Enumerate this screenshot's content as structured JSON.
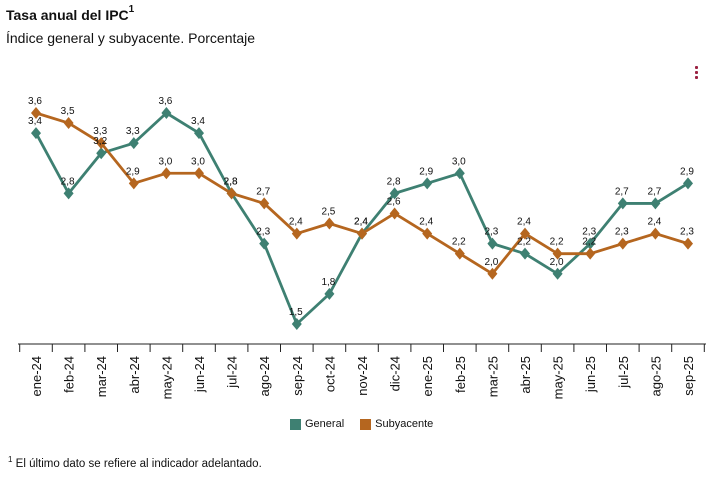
{
  "header": {
    "title": "Tasa anual del IPC",
    "title_sup": "1",
    "subtitle": "Índice general y subyacente. Porcentaje"
  },
  "footnote": {
    "sup": "1",
    "text": " El último dato se refiere al indicador adelantado."
  },
  "chart_data": {
    "type": "line",
    "categories": [
      "ene-24",
      "feb-24",
      "mar-24",
      "abr-24",
      "may-24",
      "jun-24",
      "jul-24",
      "ago-24",
      "sep-24",
      "oct-24",
      "nov-24",
      "dic-24",
      "ene-25",
      "feb-25",
      "mar-25",
      "abr-25",
      "may-25",
      "jun-25",
      "jul-25",
      "ago-25",
      "sep-25"
    ],
    "series": [
      {
        "name": "General",
        "color": "#3e8072",
        "values": [
          3.4,
          2.8,
          3.2,
          3.3,
          3.6,
          3.4,
          2.8,
          2.3,
          1.5,
          1.8,
          2.4,
          2.8,
          2.9,
          3.0,
          2.3,
          2.2,
          2.0,
          2.3,
          2.7,
          2.7,
          2.9
        ]
      },
      {
        "name": "Subyacente",
        "color": "#b5661f",
        "values": [
          3.6,
          3.5,
          3.3,
          2.9,
          3.0,
          3.0,
          2.8,
          2.7,
          2.4,
          2.5,
          2.4,
          2.6,
          2.4,
          2.2,
          2.0,
          2.4,
          2.2,
          2.2,
          2.3,
          2.4,
          2.3
        ]
      }
    ],
    "data_labels": {
      "General": [
        "3,4",
        "2,8",
        "3,2",
        "3,3",
        "3,6",
        "3,4",
        "2,8",
        "2,3",
        "1,5",
        "1,8",
        "2,4",
        "2,8",
        "2,9",
        "3,0",
        "2,3",
        "2,2",
        "2,0",
        "2,3",
        "2,7",
        "2,7",
        "2,9"
      ],
      "Subyacente": [
        "3,6",
        "3,5",
        "3,3",
        "2,9",
        "3,0",
        "3,0",
        "2,8",
        "2,7",
        "2,4",
        "2,5",
        "2,4",
        "2,6",
        "2,4",
        "2,2",
        "2,0",
        "2,4",
        "2,2",
        "2,2",
        "2,3",
        "2,4",
        "2,3"
      ]
    },
    "ylim": [
      1.3,
      3.8
    ],
    "grid": false,
    "legend_placement": "bottom-center"
  }
}
